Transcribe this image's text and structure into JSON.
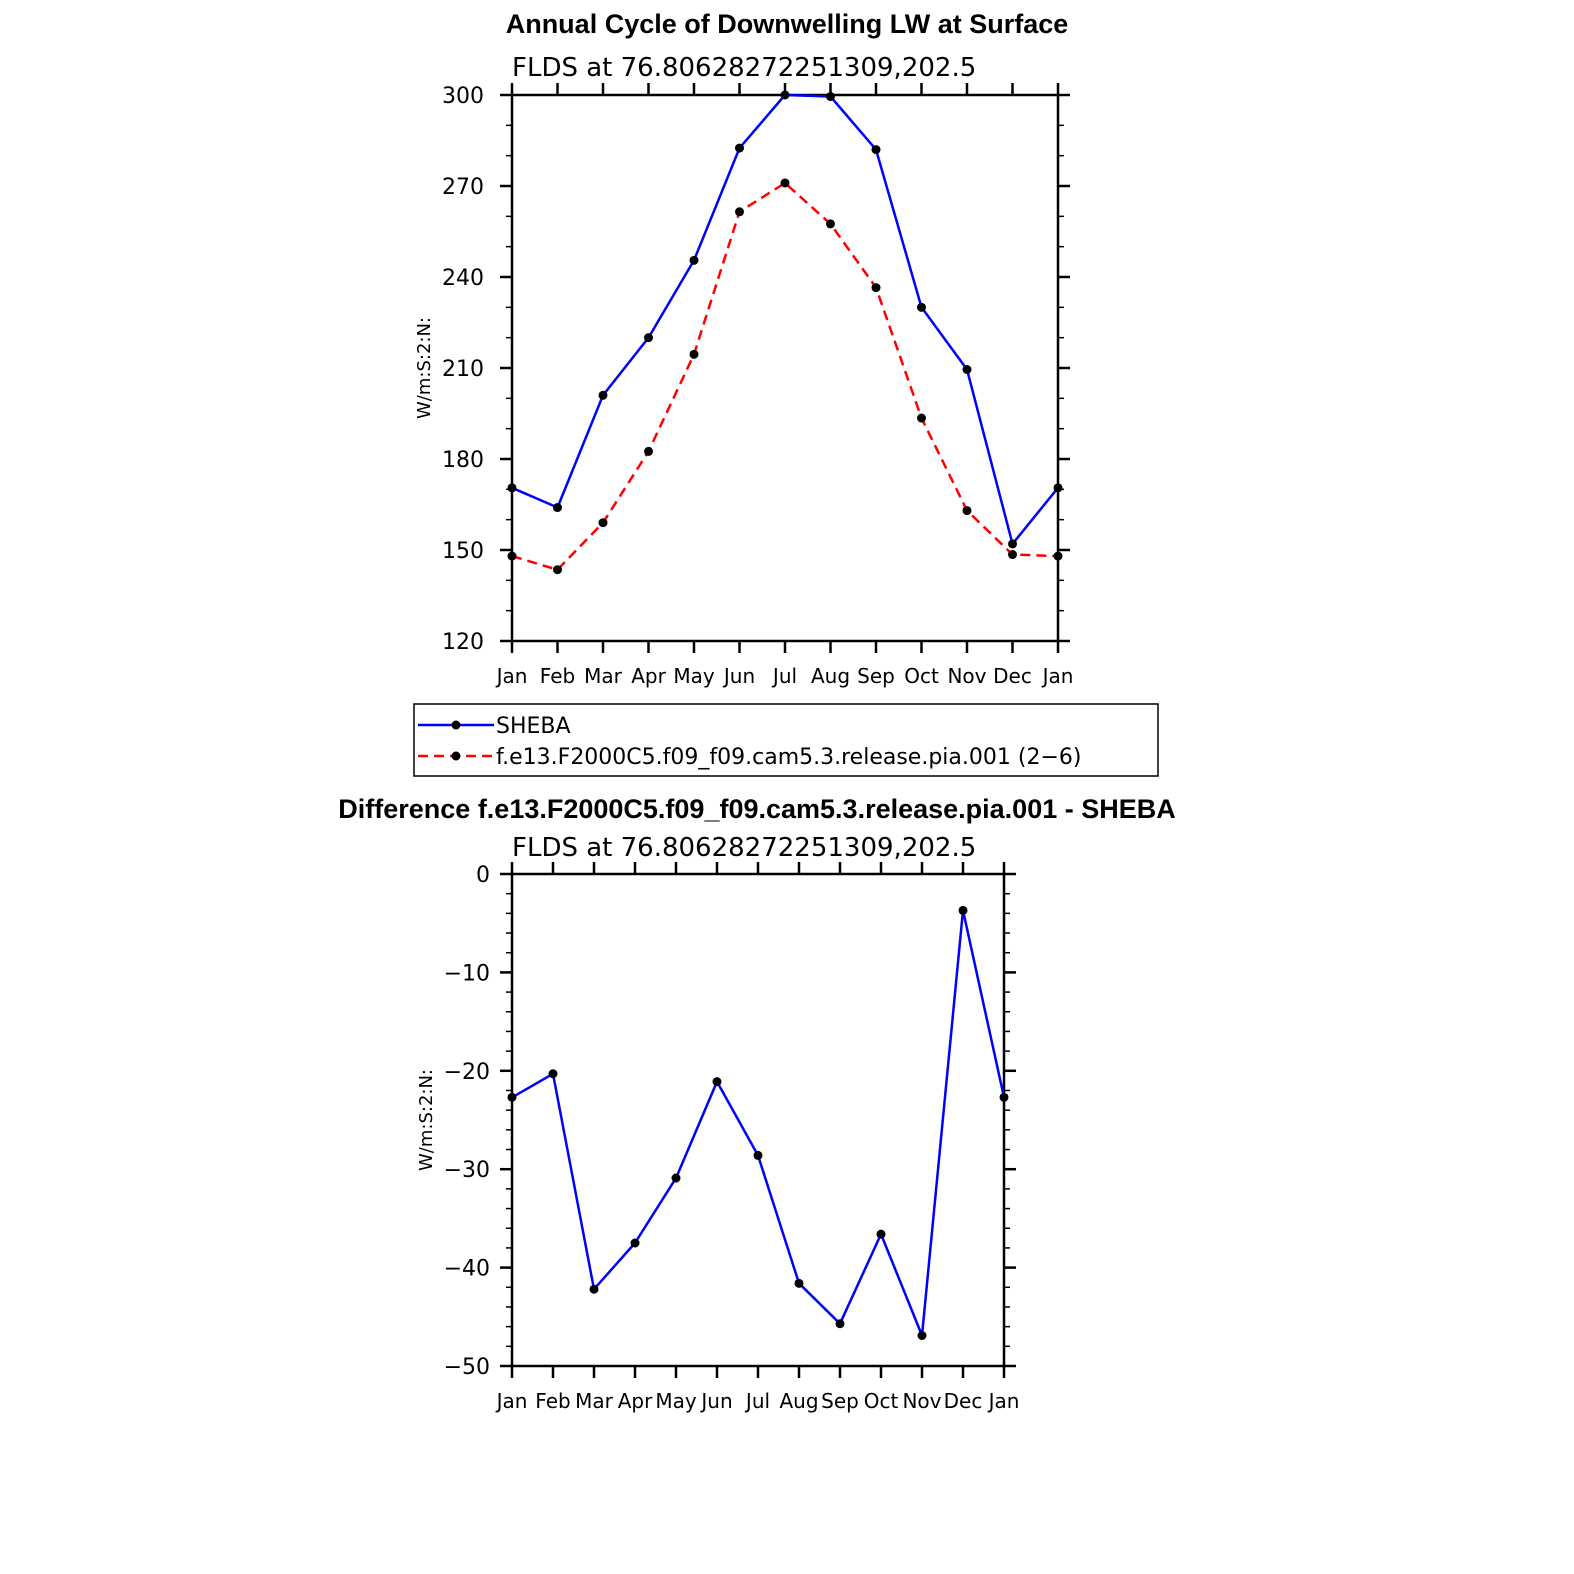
{
  "chart_data": [
    {
      "type": "line",
      "title": "Annual Cycle of Downwelling LW at Surface",
      "subtitle": "FLDS at 76.80628272251309,202.5",
      "ylabel": "W/m:S:2:N:",
      "xlabel": "",
      "categories": [
        "Jan",
        "Feb",
        "Mar",
        "Apr",
        "May",
        "Jun",
        "Jul",
        "Aug",
        "Sep",
        "Oct",
        "Nov",
        "Dec",
        "Jan"
      ],
      "ylim": [
        120,
        300
      ],
      "yticks": [
        "120",
        "150",
        "180",
        "210",
        "240",
        "270",
        "300"
      ],
      "legend": "bottom",
      "series": [
        {
          "name": "SHEBA",
          "color": "#0000ff",
          "dash": "solid",
          "values": [
            170.5,
            164,
            201,
            220,
            245.5,
            282.5,
            300,
            299.5,
            282,
            230,
            209.5,
            152,
            170.5
          ]
        },
        {
          "name": "f.e13.F2000C5.f09_f09.cam5.3.release.pia.001 (2−6)",
          "color": "#ff0000",
          "dash": "dashed",
          "values": [
            148,
            143.5,
            159,
            182.5,
            214.5,
            261.5,
            271,
            257.5,
            236.5,
            193.5,
            163,
            148.5,
            148
          ]
        }
      ]
    },
    {
      "type": "line",
      "title": "Difference f.e13.F2000C5.f09_f09.cam5.3.release.pia.001 - SHEBA",
      "subtitle": "FLDS at 76.80628272251309,202.5",
      "ylabel": "W/m:S:2:N:",
      "xlabel": "",
      "categories": [
        "Jan",
        "Feb",
        "Mar",
        "Apr",
        "May",
        "Jun",
        "Jul",
        "Aug",
        "Sep",
        "Oct",
        "Nov",
        "Dec",
        "Jan"
      ],
      "ylim": [
        -50,
        0
      ],
      "yticks": [
        "−50",
        "−40",
        "−30",
        "−20",
        "−10",
        "0"
      ],
      "series": [
        {
          "color": "#0000ff",
          "dash": "solid",
          "values": [
            -22.7,
            -20.3,
            -42.2,
            -37.5,
            -30.9,
            -21.1,
            -28.6,
            -41.6,
            -45.7,
            -36.6,
            -46.9,
            -3.7,
            -22.7
          ]
        }
      ]
    }
  ]
}
